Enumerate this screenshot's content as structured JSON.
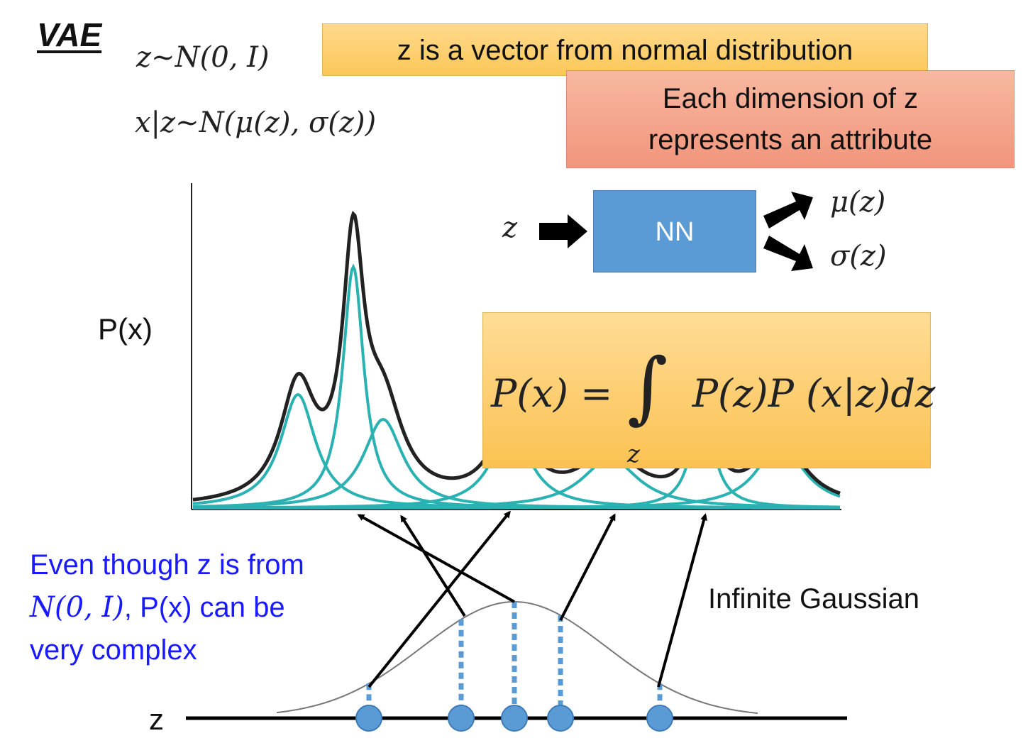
{
  "title": "VAE",
  "eq1": "z~N(0, I)",
  "eq2": "x|z~N(μ(z), σ(z))",
  "box1_text": "z is a vector from normal distribution",
  "box2_line1": "Each dimension of z",
  "box2_line2": "represents an attribute",
  "nn_label": "NN",
  "nn_input": "z",
  "nn_out_mu": "μ(z)",
  "nn_out_sigma": "σ(z)",
  "y_axis_label": "P(x)",
  "formula_left": "P(x) =",
  "formula_integral": "∫",
  "formula_right": "P(z)P (x|z)dz",
  "formula_sub": "z",
  "note_part1": "Even though z is from ",
  "note_math": "N(0, I)",
  "note_part2": ", P(x) can be very complex",
  "infinite_label": "Infinite Gaussian",
  "z_axis_label": "z",
  "colors": {
    "mixture_line": "#222222",
    "components": "#2ab1b1",
    "samples": "#5b9bd5",
    "note_text": "#1a1aff"
  },
  "mixture_components": [
    {
      "mu": 420,
      "sigma": 30,
      "amp": 160
    },
    {
      "mu": 498,
      "sigma": 18,
      "amp": 340
    },
    {
      "mu": 540,
      "sigma": 34,
      "amp": 125
    },
    {
      "mu": 720,
      "sigma": 34,
      "amp": 110
    },
    {
      "mu": 860,
      "sigma": 48,
      "amp": 70
    },
    {
      "mu": 990,
      "sigma": 18,
      "amp": 150
    },
    {
      "mu": 1100,
      "sigma": 40,
      "amp": 90
    }
  ],
  "z_samples": [
    520,
    650,
    725,
    790,
    930
  ]
}
